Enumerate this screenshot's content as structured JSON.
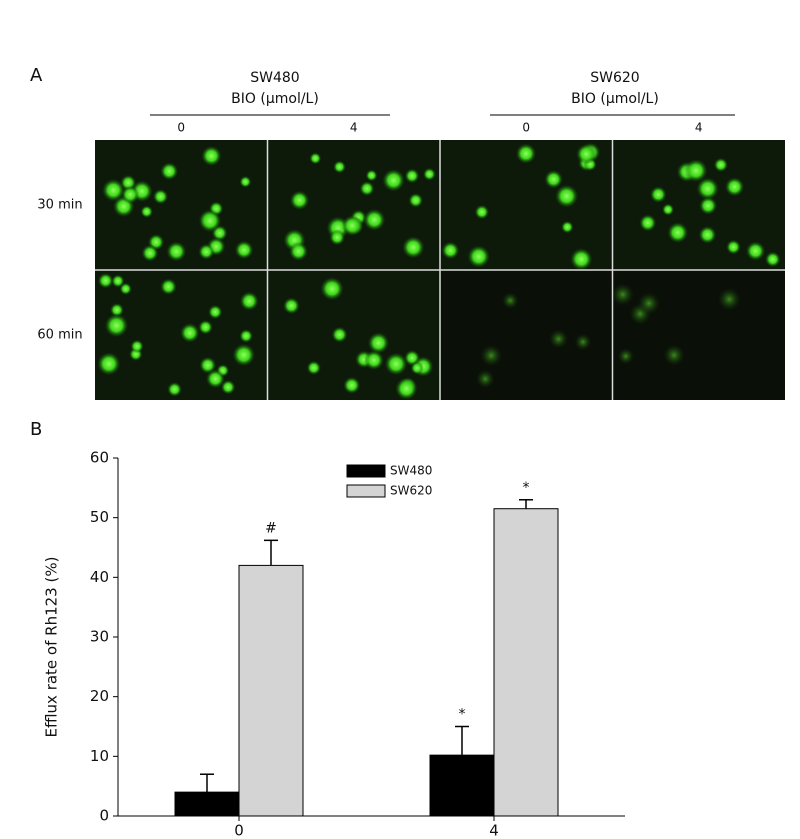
{
  "panel_a": {
    "label": "A",
    "groups": [
      {
        "name": "SW480",
        "treatment": "BIO (μmol/L)",
        "doses": [
          "0",
          "4"
        ]
      },
      {
        "name": "SW620",
        "treatment": "BIO (μmol/L)",
        "doses": [
          "0",
          "4"
        ]
      }
    ],
    "rows": [
      "30 min",
      "60 min"
    ]
  },
  "panel_b_label": "B",
  "chart_data": {
    "type": "bar",
    "y_label": "Efflux rate of Rh123 (%)",
    "categories": [
      "0",
      "4"
    ],
    "series": [
      {
        "name": "SW480",
        "color": "#000000",
        "values": [
          4,
          10.2
        ],
        "errors": [
          3,
          4.8
        ],
        "markers": [
          null,
          "*"
        ]
      },
      {
        "name": "SW620",
        "color": "#d4d4d4",
        "values": [
          42,
          51.5
        ],
        "errors": [
          4.2,
          1.5
        ],
        "markers": [
          "#",
          "*"
        ]
      }
    ],
    "ylim": [
      0,
      60
    ],
    "yticks": [
      0,
      10,
      20,
      30,
      40,
      50,
      60
    ]
  }
}
